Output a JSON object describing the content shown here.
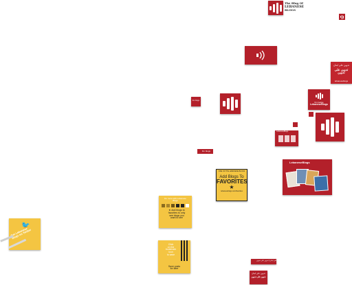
{
  "top_logo": {
    "line1": "The Blog Of",
    "line2": "LEBANESE",
    "line3": "BLOGS"
  },
  "banner_ar_top": {
    "line1": "تدوين على لبنان",
    "line2": "تدوين على تدوين",
    "line3": "lebaneseblogs"
  },
  "small_badge": {
    "label": "lbn blogs"
  },
  "widget_tile": {
    "line1": "lbn badge",
    "line2": "LebaneseBlogs"
  },
  "mini_widget": {
    "label": "LebaneseBlogs"
  },
  "tag_label": {
    "text": "lbn blogs"
  },
  "social_card": {
    "title": "LebaneseBlogs"
  },
  "favorites": {
    "top": "ONE OF THE LEBANESE BLOGS",
    "line1": "Add Blogs To",
    "line2": "FAVORITES",
    "foot": "lebaneseblogs.com/favorites"
  },
  "yellow_card": {
    "title": "Do more with Lebanese Blogs",
    "line1": "Add blogs to",
    "line2": "favorites to only",
    "line3": "see blogs you",
    "line4": "want to see"
  },
  "twitter_card": {
    "line1": "Get Lebanese",
    "line2": "blogs on Twitter"
  },
  "save_card": {
    "line1": "Click",
    "line2": "on the",
    "line3": "bookmark",
    "line4": "icon",
    "line5": "to save",
    "bottom1": "Save posts",
    "bottom2": "for later"
  },
  "bottom_bar": {
    "text": "تدوين على لبنان | تدوين على تدوين"
  },
  "bottom_tile": {
    "line1": "تدوين على لبنان",
    "line2": "تدوين على تدوين"
  }
}
